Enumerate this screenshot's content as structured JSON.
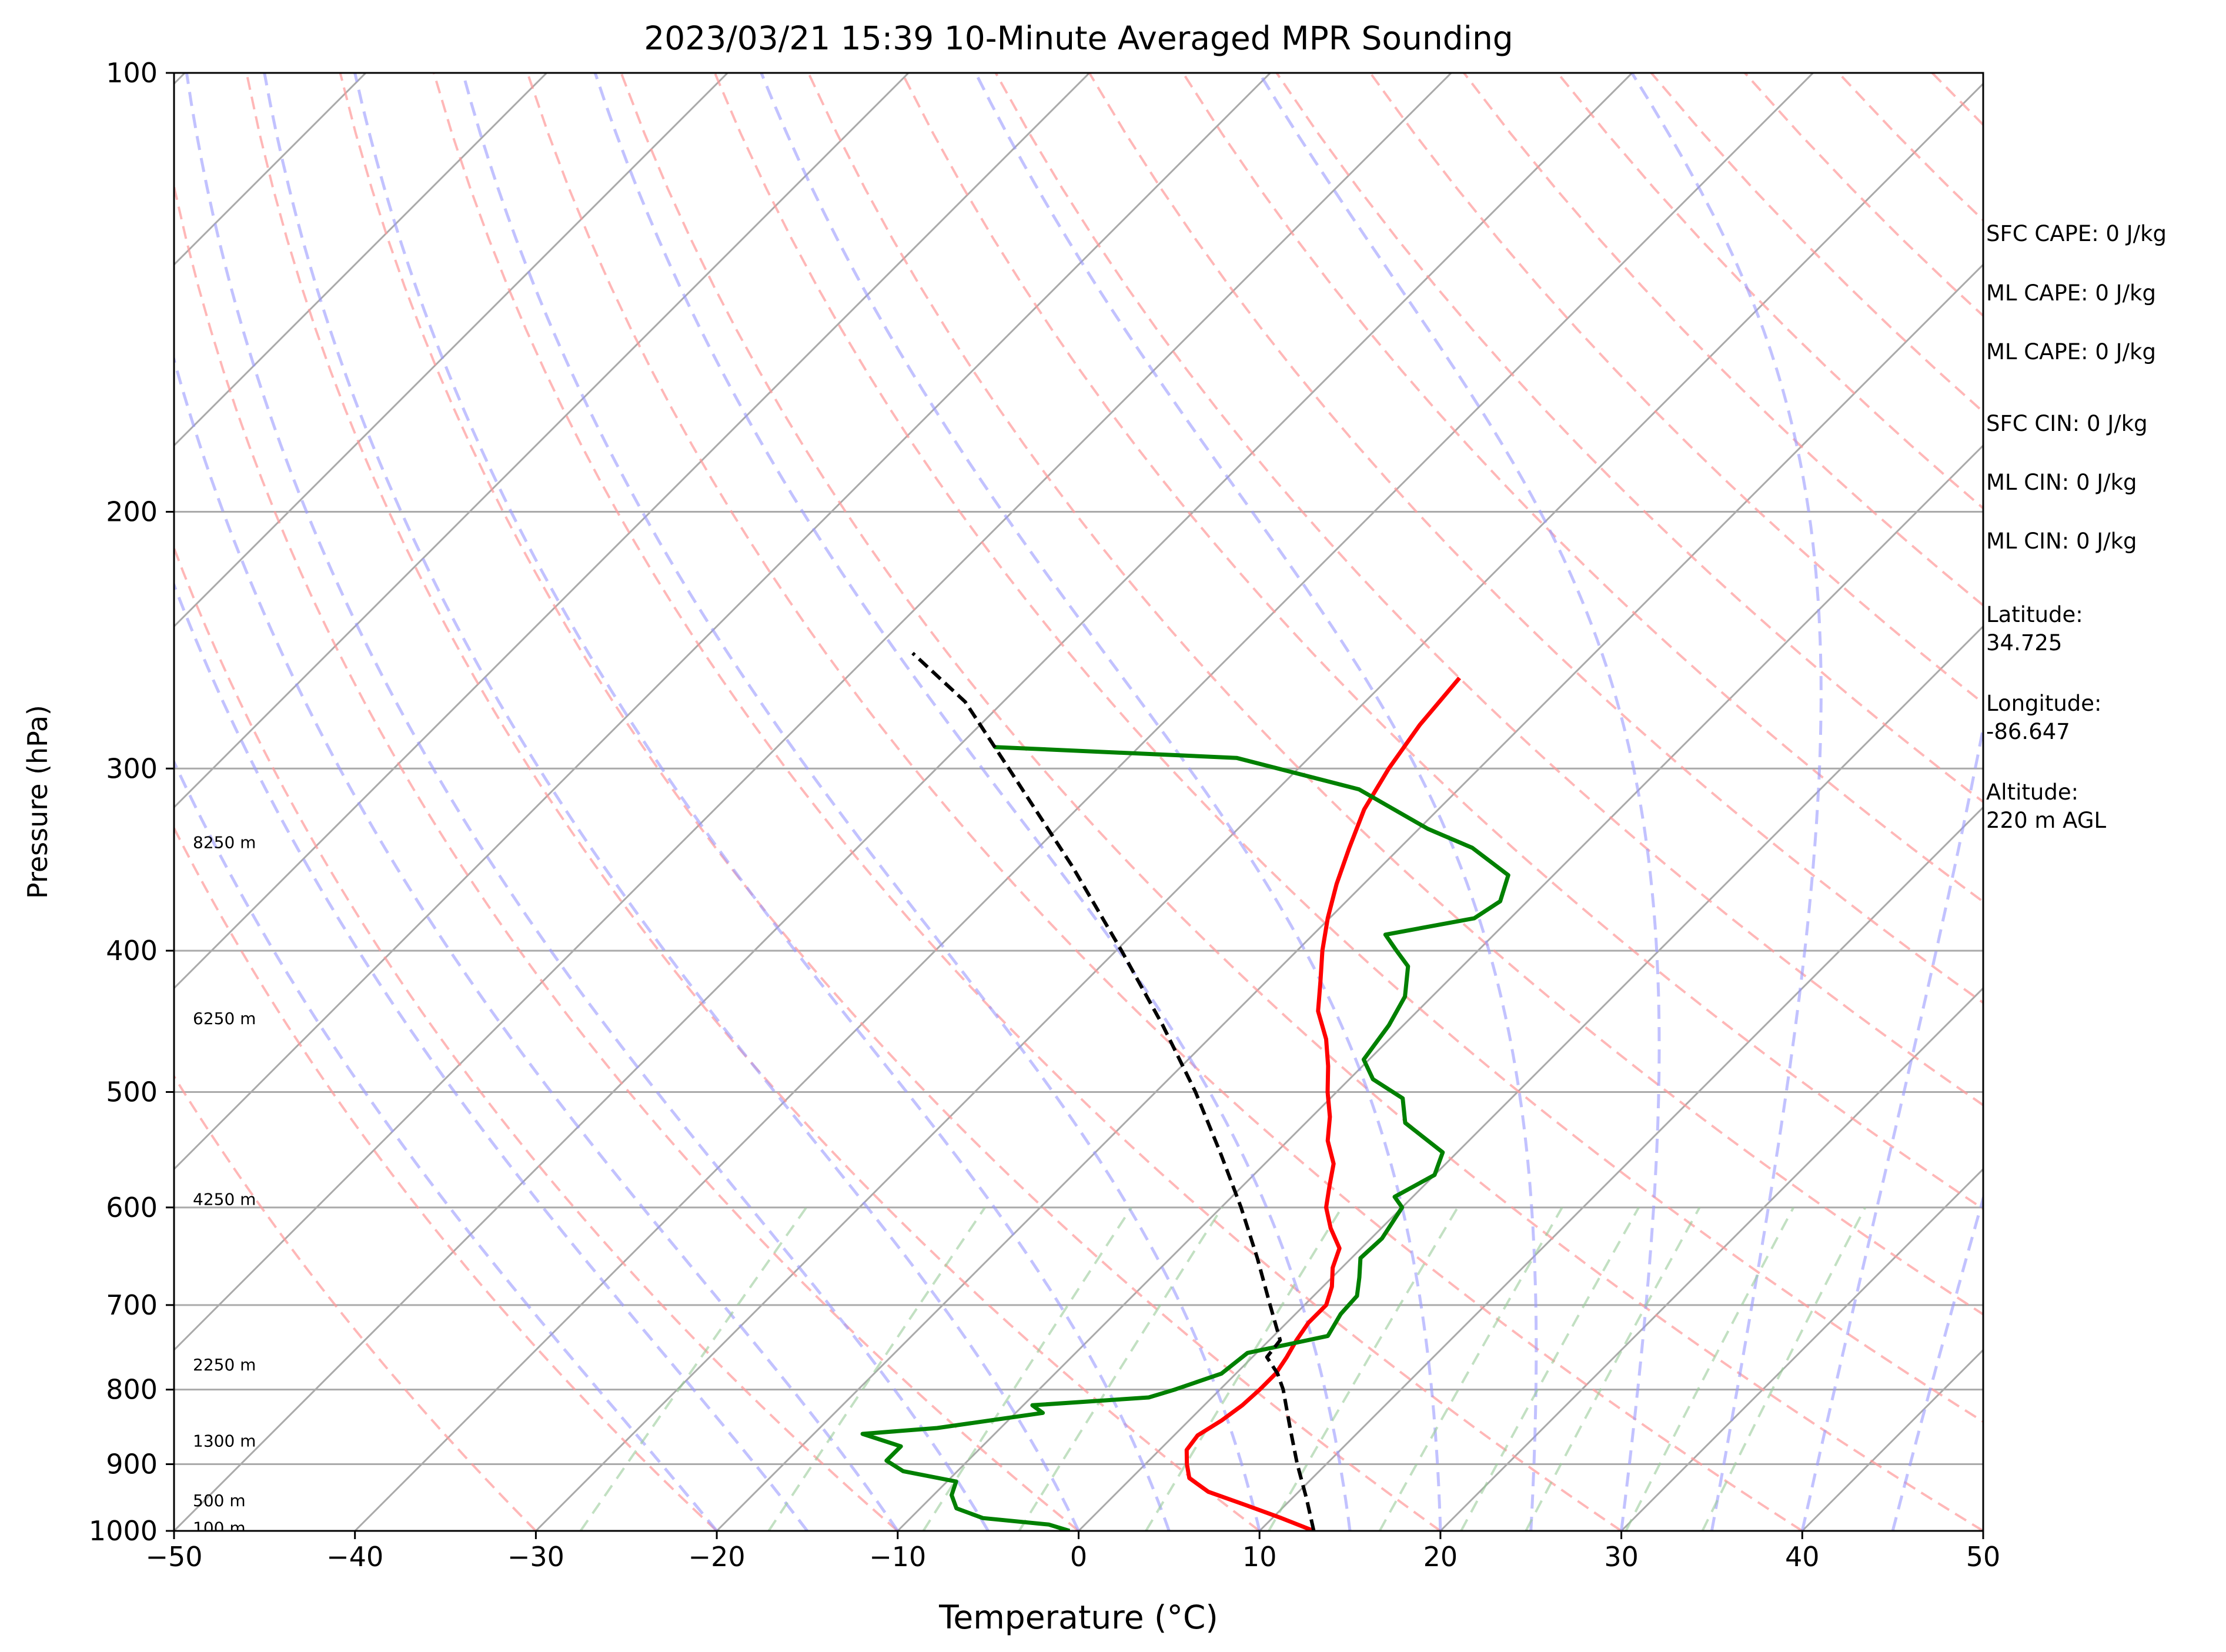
{
  "chart_data": {
    "type": "line",
    "title": "2023/03/21 15:39 10-Minute Averaged MPR Sounding",
    "xlabel": "Temperature (°C)",
    "ylabel": "Pressure (hPa)",
    "xlim": [
      -50,
      50
    ],
    "ylim": [
      1000,
      100
    ],
    "y_scale": "log",
    "skew": "skew-T log-P",
    "grid": true,
    "x_ticks": [
      "−50",
      "−40",
      "−30",
      "−20",
      "−10",
      "0",
      "10",
      "20",
      "30",
      "40",
      "50"
    ],
    "y_ticks": [
      "100",
      "200",
      "300",
      "400",
      "500",
      "600",
      "700",
      "800",
      "900",
      "1000"
    ],
    "series": [
      {
        "color": "#ff0000",
        "role": "temperature",
        "points": [
          [
            1000,
            13.0
          ],
          [
            980,
            10.5
          ],
          [
            960,
            7.8
          ],
          [
            940,
            5.0
          ],
          [
            920,
            3.2
          ],
          [
            900,
            2.3
          ],
          [
            880,
            1.5
          ],
          [
            860,
            1.3
          ],
          [
            840,
            1.8
          ],
          [
            820,
            2.1
          ],
          [
            800,
            2.2
          ],
          [
            780,
            2.2
          ],
          [
            760,
            1.9
          ],
          [
            740,
            1.5
          ],
          [
            720,
            1.2
          ],
          [
            700,
            1.2
          ],
          [
            680,
            0.5
          ],
          [
            660,
            -0.5
          ],
          [
            640,
            -1.2
          ],
          [
            620,
            -2.8
          ],
          [
            600,
            -4.2
          ],
          [
            580,
            -5.2
          ],
          [
            560,
            -6.2
          ],
          [
            540,
            -7.8
          ],
          [
            520,
            -9.0
          ],
          [
            500,
            -10.5
          ],
          [
            480,
            -11.9
          ],
          [
            460,
            -13.5
          ],
          [
            440,
            -15.5
          ],
          [
            420,
            -17.0
          ],
          [
            400,
            -18.6
          ],
          [
            380,
            -20.1
          ],
          [
            360,
            -21.5
          ],
          [
            340,
            -22.8
          ],
          [
            320,
            -24.1
          ],
          [
            300,
            -25.0
          ],
          [
            280,
            -25.7
          ],
          [
            260,
            -26.1
          ]
        ]
      },
      {
        "color": "#008000",
        "role": "dewpoint",
        "points": [
          [
            1000,
            -0.5
          ],
          [
            990,
            -2.0
          ],
          [
            980,
            -6.0
          ],
          [
            965,
            -8.0
          ],
          [
            945,
            -9.0
          ],
          [
            925,
            -9.5
          ],
          [
            910,
            -13.0
          ],
          [
            895,
            -14.5
          ],
          [
            875,
            -14.5
          ],
          [
            858,
            -17.3
          ],
          [
            850,
            -13.5
          ],
          [
            830,
            -8.5
          ],
          [
            820,
            -9.5
          ],
          [
            810,
            -3.5
          ],
          [
            800,
            -2.5
          ],
          [
            780,
            -0.8
          ],
          [
            755,
            -0.5
          ],
          [
            735,
            3.0
          ],
          [
            710,
            2.5
          ],
          [
            690,
            2.4
          ],
          [
            670,
            1.5
          ],
          [
            650,
            0.5
          ],
          [
            630,
            0.6
          ],
          [
            600,
            0.0
          ],
          [
            590,
            -1.0
          ],
          [
            570,
            0.0
          ],
          [
            550,
            -0.8
          ],
          [
            525,
            -4.5
          ],
          [
            505,
            -6.0
          ],
          [
            490,
            -8.7
          ],
          [
            475,
            -10.3
          ],
          [
            450,
            -10.8
          ],
          [
            430,
            -11.5
          ],
          [
            410,
            -13.0
          ],
          [
            400,
            -14.5
          ],
          [
            390,
            -16.0
          ],
          [
            380,
            -12.0
          ],
          [
            370,
            -11.5
          ],
          [
            355,
            -12.5
          ],
          [
            340,
            -16.0
          ],
          [
            330,
            -19.5
          ],
          [
            310,
            -25.5
          ],
          [
            295,
            -34.0
          ],
          [
            290,
            -48.0
          ]
        ]
      },
      {
        "color": "#000000",
        "role": "parcel",
        "dashed": true,
        "points": [
          [
            1000,
            13.0
          ],
          [
            950,
            10.8
          ],
          [
            900,
            8.4
          ],
          [
            850,
            6.0
          ],
          [
            800,
            3.5
          ],
          [
            780,
            2.3
          ],
          [
            760,
            0.8
          ],
          [
            740,
            0.6
          ],
          [
            700,
            -1.9
          ],
          [
            650,
            -5.2
          ],
          [
            600,
            -8.9
          ],
          [
            550,
            -13.1
          ],
          [
            500,
            -17.8
          ],
          [
            450,
            -23.3
          ],
          [
            400,
            -29.7
          ],
          [
            350,
            -37.1
          ],
          [
            300,
            -46.0
          ],
          [
            270,
            -52.1
          ],
          [
            250,
            -57.7
          ]
        ]
      }
    ],
    "height_labels": [
      {
        "label": "100 m",
        "p": 995
      },
      {
        "label": "500 m",
        "p": 953
      },
      {
        "label": "1300 m",
        "p": 867
      },
      {
        "label": "2250 m",
        "p": 769
      },
      {
        "label": "4250 m",
        "p": 592
      },
      {
        "label": "6250 m",
        "p": 445
      },
      {
        "label": "8250 m",
        "p": 337
      }
    ],
    "reference_lines": {
      "isotherm_color": "#aaaaaa",
      "dry_adiabat_color": "#ff9999",
      "moist_adiabat_color": "#9999ff",
      "mixing_ratio_color": "#99cc99"
    },
    "info": [
      {
        "text": "SFC CAPE: 0 J/kg"
      },
      {
        "text": "ML CAPE: 0 J/kg"
      },
      {
        "text": "ML CAPE: 0 J/kg"
      },
      {
        "text": "SFC CIN: 0 J/kg"
      },
      {
        "text": "ML CIN: 0 J/kg"
      },
      {
        "text": "ML CIN: 0 J/kg"
      },
      {
        "text": "Latitude:\n34.725"
      },
      {
        "text": "Longitude:\n-86.647"
      },
      {
        "text": "Altitude:\n220 m AGL"
      }
    ]
  }
}
